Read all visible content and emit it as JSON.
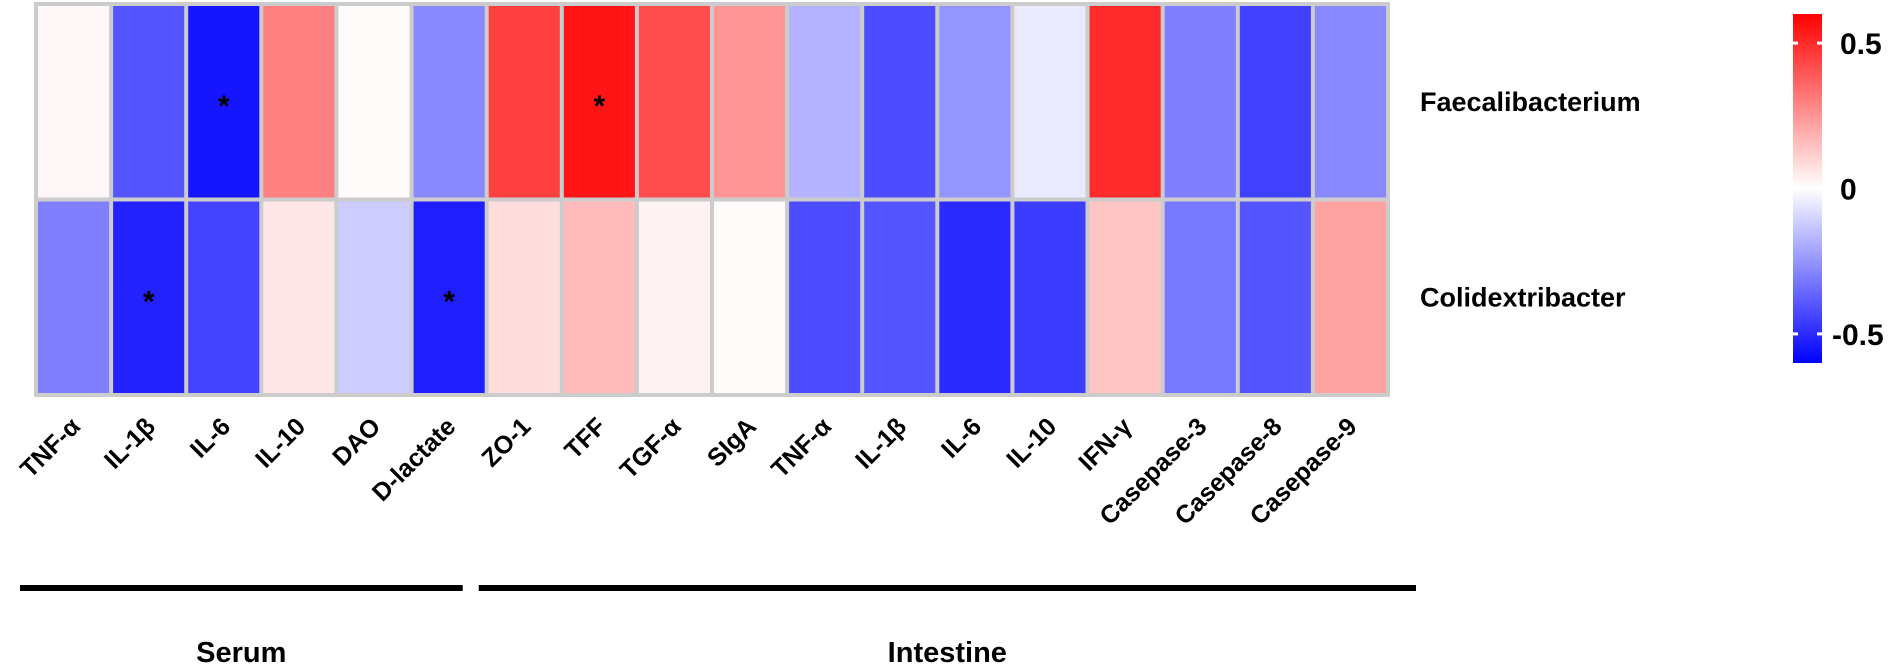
{
  "chart_data": {
    "type": "heatmap",
    "title": "",
    "rows": [
      "Faecalibacterium",
      "Colidextribacter"
    ],
    "columns": [
      "TNF-α",
      "IL-1β",
      "IL-6",
      "IL-10",
      "DAO",
      "D-lactate",
      "ZO-1",
      "TFF",
      "TGF-α",
      "SIgA",
      "TNF-α",
      "IL-1β",
      "IL-6",
      "IL-10",
      "IFN-γ",
      "Casepase-3",
      "Casepase-8",
      "Casepase-9"
    ],
    "values": [
      [
        0.02,
        -0.4,
        -0.55,
        0.3,
        0.01,
        -0.28,
        0.45,
        0.55,
        0.42,
        0.25,
        -0.18,
        -0.42,
        -0.25,
        -0.05,
        0.5,
        -0.3,
        -0.45,
        -0.28
      ],
      [
        -0.3,
        -0.52,
        -0.44,
        0.06,
        -0.12,
        -0.53,
        0.08,
        0.16,
        0.03,
        0.01,
        -0.42,
        -0.4,
        -0.5,
        -0.46,
        0.14,
        -0.32,
        -0.4,
        0.22
      ]
    ],
    "significance": [
      [
        "",
        "",
        "*",
        "",
        "",
        "",
        "",
        "*",
        "",
        "",
        "",
        "",
        "",
        "",
        "",
        "",
        "",
        ""
      ],
      [
        "",
        "*",
        "",
        "",
        "",
        "*",
        "",
        "",
        "",
        "",
        "",
        "",
        "",
        "",
        "",
        "",
        "",
        ""
      ]
    ],
    "groups": [
      {
        "name": "Serum",
        "start": 0,
        "end": 5
      },
      {
        "name": "Intestine",
        "start": 6,
        "end": 17
      }
    ],
    "colorbar": {
      "min": -0.6,
      "max": 0.6,
      "ticks": [
        "0.5",
        "0",
        "-0.5"
      ],
      "tick_values": [
        0.5,
        0,
        -0.5
      ]
    },
    "colors": {
      "low": "#0000ff",
      "mid": "#ffffff",
      "high": "#ff0000",
      "grid": "#cccccc"
    }
  }
}
